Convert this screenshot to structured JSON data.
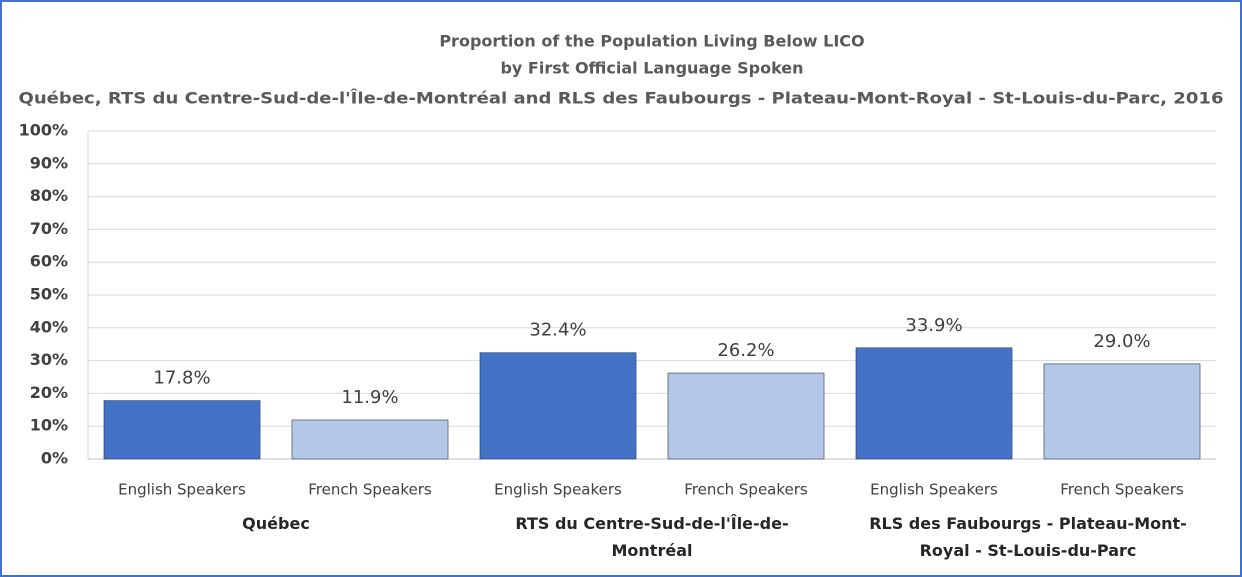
{
  "chart_data": {
    "type": "bar",
    "title": [
      "Proportion of the Population Living Below LICO",
      "by First Official Language Spoken",
      "Québec, RTS du Centre-Sud-de-l'Île-de-Montréal and RLS des Faubourgs - Plateau-Mont-Royal - St-Louis-du-Parc, 2016"
    ],
    "categories": [
      "English Speakers",
      "French Speakers",
      "English Speakers",
      "French Speakers",
      "English Speakers",
      "French Speakers"
    ],
    "groups": [
      "Québec",
      "RTS du Centre-Sud-de-l'Île-de-Montréal",
      "RLS des Faubourgs - Plateau-Mont-Royal - St-Louis-du-Parc"
    ],
    "values": [
      17.8,
      11.9,
      32.4,
      26.2,
      33.9,
      29.0
    ],
    "value_labels": [
      "17.8%",
      "11.9%",
      "32.4%",
      "26.2%",
      "33.9%",
      "29.0%"
    ],
    "colors": [
      "#4472c4",
      "#b4c7e7",
      "#4472c4",
      "#b4c7e7",
      "#4472c4",
      "#b4c7e7"
    ],
    "ylim": [
      0,
      100
    ],
    "yticks": [
      {
        "value": 0,
        "label": "0%"
      },
      {
        "value": 10,
        "label": "10%"
      },
      {
        "value": 20,
        "label": "20%"
      },
      {
        "value": 30,
        "label": "30%"
      },
      {
        "value": 40,
        "label": "40%"
      },
      {
        "value": 50,
        "label": "50%"
      },
      {
        "value": 60,
        "label": "60%"
      },
      {
        "value": 70,
        "label": "70%"
      },
      {
        "value": 80,
        "label": "80%"
      },
      {
        "value": 90,
        "label": "90%"
      },
      {
        "value": 100,
        "label": "100%"
      }
    ],
    "grid": true
  }
}
